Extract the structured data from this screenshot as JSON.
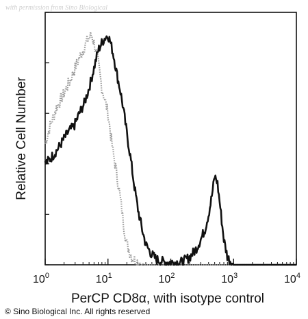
{
  "watermark": "with permission from Sino Biological",
  "copyright": "© Sino Biological Inc. All rights reserved",
  "chart_data": {
    "type": "line",
    "title": "",
    "xlabel": "PerCP CD8α, with isotype control",
    "ylabel": "Relative Cell Number",
    "x_scale": "log",
    "xlim": [
      1,
      10000
    ],
    "ylim": [
      0,
      100
    ],
    "grid": false,
    "x_ticks": [
      {
        "value": 1,
        "base": "10",
        "exp": "0"
      },
      {
        "value": 10,
        "base": "10",
        "exp": "1"
      },
      {
        "value": 100,
        "base": "10",
        "exp": "2"
      },
      {
        "value": 1000,
        "base": "10",
        "exp": "3"
      },
      {
        "value": 10000,
        "base": "10",
        "exp": "4"
      }
    ],
    "series": [
      {
        "color": "#111111",
        "style": "solid-thick",
        "x": [
          1.0,
          1.2,
          1.4,
          1.7,
          2.0,
          2.4,
          2.9,
          3.5,
          4.2,
          5.0,
          6.0,
          7.0,
          8.0,
          9.0,
          10.0,
          11.0,
          12.5,
          14.0,
          16.0,
          18.0,
          20.0,
          23.0,
          26.0,
          30.0,
          35.0,
          40.0,
          50.0,
          60.0,
          80.0,
          100.0,
          150.0,
          200.0,
          250.0,
          300.0,
          350.0,
          400.0,
          450.0,
          500.0,
          550.0,
          600.0,
          700.0,
          800.0,
          1000.0,
          1500.0,
          3000.0,
          10000.0
        ],
        "y": [
          40,
          42,
          44,
          47,
          50,
          53,
          55,
          60,
          64,
          70,
          78,
          85,
          88,
          90,
          91,
          88,
          82,
          75,
          68,
          60,
          52,
          42,
          32,
          22,
          14,
          8,
          4,
          2,
          1,
          1,
          1,
          3,
          6,
          10,
          14,
          20,
          27,
          35,
          33,
          25,
          10,
          3,
          0,
          0,
          0,
          0
        ]
      },
      {
        "color": "#9a9a9a",
        "style": "dotted",
        "x": [
          1.0,
          1.2,
          1.5,
          2.0,
          2.5,
          3.0,
          3.5,
          4.0,
          4.5,
          5.0,
          5.5,
          6.0,
          7.0,
          8.0,
          9.0,
          10.0,
          11.0,
          12.0,
          14.0,
          16.0,
          18.0,
          20.0,
          24.0,
          30.0,
          40.0,
          60.0,
          100.0,
          10000.0
        ],
        "y": [
          48,
          55,
          62,
          68,
          73,
          78,
          82,
          85,
          88,
          90,
          91,
          88,
          80,
          70,
          65,
          60,
          52,
          45,
          35,
          25,
          15,
          8,
          3,
          1,
          0,
          0,
          0,
          0
        ]
      }
    ]
  }
}
